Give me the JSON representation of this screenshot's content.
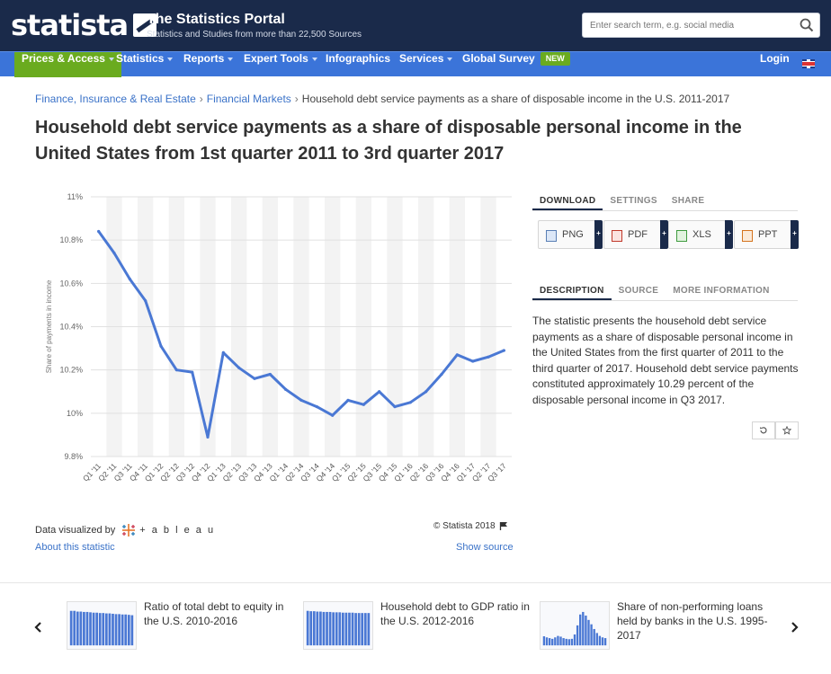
{
  "header": {
    "logo": "statista",
    "portal_title": "The Statistics Portal",
    "portal_subtitle": "Statistics and Studies from more than 22,500 Sources",
    "search_placeholder": "Enter search term, e.g. social media"
  },
  "nav": {
    "items": [
      "Prices & Access",
      "Statistics",
      "Reports",
      "Expert Tools",
      "Infographics",
      "Services",
      "Global Survey"
    ],
    "new_badge": "NEW",
    "login": "Login"
  },
  "breadcrumb": {
    "crumbs": [
      "Finance, Insurance & Real Estate",
      "Financial Markets"
    ],
    "current": "Household debt service payments as a share of disposable income in the U.S. 2011-2017"
  },
  "page_title": "Household debt service payments as a share of disposable personal income in the United States from 1st quarter 2011 to 3rd quarter 2017",
  "chart_data": {
    "type": "line",
    "title": "",
    "xlabel": "",
    "ylabel": "Share of payments in income",
    "ylim": [
      9.8,
      11
    ],
    "yticks": [
      "9.8%",
      "10%",
      "10.2%",
      "10.4%",
      "10.6%",
      "10.8%",
      "11%"
    ],
    "ytick_values": [
      9.8,
      10.0,
      10.2,
      10.4,
      10.6,
      10.8,
      11.0
    ],
    "categories": [
      "Q1 '11",
      "Q2 '11",
      "Q3 '11",
      "Q4 '11",
      "Q1 '12",
      "Q2 '12",
      "Q3 '12",
      "Q4 '12",
      "Q1 '13",
      "Q2 '13",
      "Q3 '13",
      "Q4 '13",
      "Q1 '14",
      "Q2 '14",
      "Q3 '14",
      "Q4 '14",
      "Q1 '15",
      "Q2 '15",
      "Q3 '15",
      "Q4 '15",
      "Q1 '16",
      "Q2 '16",
      "Q3 '16",
      "Q4 '16",
      "Q1 '17",
      "Q2 '17",
      "Q3 '17"
    ],
    "values": [
      10.84,
      10.74,
      10.62,
      10.52,
      10.31,
      10.2,
      10.19,
      9.89,
      10.28,
      10.21,
      10.16,
      10.18,
      10.11,
      10.06,
      10.03,
      9.99,
      10.06,
      10.04,
      10.1,
      10.03,
      10.05,
      10.1,
      10.18,
      10.27,
      10.24,
      10.26,
      10.29
    ],
    "line_color": "#4a78d4",
    "grid": true,
    "legend": "none"
  },
  "chart_footer": {
    "visualized_by": "Data visualized by",
    "tableau": "+ a b l e a u",
    "copyright": "© Statista 2018",
    "about": "About this statistic",
    "show_source": "Show source"
  },
  "panel": {
    "tabs_top": [
      "DOWNLOAD",
      "SETTINGS",
      "SHARE"
    ],
    "downloads": [
      "PNG",
      "PDF",
      "XLS",
      "PPT"
    ],
    "plus": "+",
    "tabs_bottom": [
      "DESCRIPTION",
      "SOURCE",
      "MORE INFORMATION"
    ],
    "description": "The statistic presents the household debt service payments as a share of disposable personal income in the United States from the first quarter of 2011 to the third quarter of 2017. Household debt service payments constituted approximately 10.29 percent of the disposable personal income in Q3 2017."
  },
  "related": [
    {
      "title": "Ratio of total debt to equity in the U.S. 2010-2016",
      "thumb_values": [
        0.95,
        0.95,
        0.93,
        0.93,
        0.92,
        0.92,
        0.91,
        0.9,
        0.9,
        0.89,
        0.89,
        0.88,
        0.88,
        0.87,
        0.86,
        0.86,
        0.85,
        0.85,
        0.84,
        0.83
      ]
    },
    {
      "title": "Household debt to GDP ratio in the U.S. 2012-2016",
      "thumb_values": [
        0.95,
        0.94,
        0.94,
        0.93,
        0.93,
        0.92,
        0.92,
        0.92,
        0.91,
        0.91,
        0.91,
        0.9,
        0.9,
        0.9,
        0.9,
        0.89,
        0.89,
        0.89,
        0.89,
        0.89
      ]
    },
    {
      "title": "Share of non-performing loans held by banks in the U.S. 1995-2017",
      "thumb_values": [
        0.25,
        0.22,
        0.2,
        0.18,
        0.22,
        0.26,
        0.24,
        0.2,
        0.18,
        0.17,
        0.18,
        0.3,
        0.55,
        0.85,
        0.92,
        0.82,
        0.7,
        0.58,
        0.45,
        0.34,
        0.26,
        0.22,
        0.2
      ]
    }
  ]
}
